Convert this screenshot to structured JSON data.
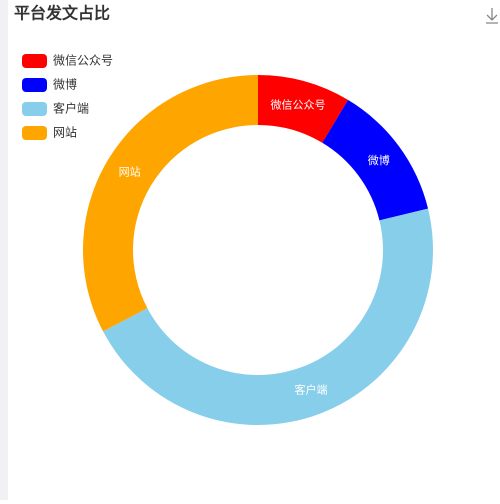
{
  "chart_data": {
    "type": "pie",
    "title": "平台发文占比",
    "categories": [
      "微信公众号",
      "微博",
      "客户端",
      "网站"
    ],
    "values": [
      8.6,
      12.6,
      46.1,
      32.7
    ],
    "colors": [
      "#ff0000",
      "#0000ff",
      "#87ceeb",
      "#ffa500"
    ],
    "legend": "top-left"
  }
}
